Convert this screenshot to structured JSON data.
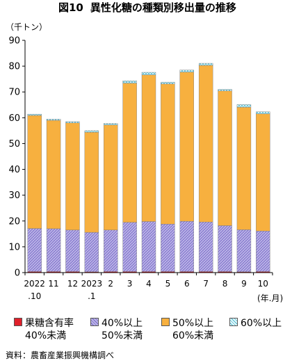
{
  "header": {
    "figure_label": "図10",
    "title": "異性化糖の種類別移出量の推移"
  },
  "chart_data": {
    "type": "bar",
    "stacked": true,
    "y_unit_label": "（千トン）",
    "x_unit_label": "(年.月)",
    "ylim": [
      0,
      90
    ],
    "yticks": [
      0,
      10,
      20,
      30,
      40,
      50,
      60,
      70,
      80,
      90
    ],
    "grid": false,
    "categories": [
      "2022.10",
      "11",
      "12",
      "2023.1",
      "2",
      "3",
      "4",
      "5",
      "6",
      "7",
      "8",
      "9",
      "10"
    ],
    "tick_labels": [
      {
        "line1": "2022",
        "line2": ".10"
      },
      {
        "line1": "11",
        "line2": ""
      },
      {
        "line1": "12",
        "line2": ""
      },
      {
        "line1": "2023",
        "line2": ".1"
      },
      {
        "line1": "2",
        "line2": ""
      },
      {
        "line1": "3",
        "line2": ""
      },
      {
        "line1": "4",
        "line2": ""
      },
      {
        "line1": "5",
        "line2": ""
      },
      {
        "line1": "6",
        "line2": ""
      },
      {
        "line1": "7",
        "line2": ""
      },
      {
        "line1": "8",
        "line2": ""
      },
      {
        "line1": "9",
        "line2": ""
      },
      {
        "line1": "10",
        "line2": ""
      }
    ],
    "series": [
      {
        "name": "果糖含有率 40%未満",
        "color": "#e0202a",
        "values": [
          0.4,
          0.4,
          0.4,
          0.3,
          0.4,
          0.4,
          0.4,
          0.4,
          0.4,
          0.4,
          0.4,
          0.3,
          0.4
        ]
      },
      {
        "name": "40%以上 50%未満",
        "color": "#b9b3e6",
        "values": [
          16.7,
          16.6,
          16.1,
          15.3,
          16.1,
          19.1,
          19.4,
          18.4,
          19.5,
          19.2,
          17.8,
          16.3,
          15.7
        ]
      },
      {
        "name": "50%以上 60%未満",
        "color": "#f7b03f",
        "values": [
          43.8,
          42.0,
          41.5,
          38.8,
          40.7,
          53.9,
          56.8,
          54.3,
          57.8,
          60.7,
          52.2,
          47.5,
          45.4
        ]
      },
      {
        "name": "60%以上",
        "color": "#cfeef6",
        "values": [
          0.5,
          0.5,
          0.5,
          0.6,
          0.6,
          0.9,
          1.0,
          0.7,
          0.8,
          0.8,
          0.6,
          1.0,
          0.8
        ]
      }
    ]
  },
  "legend": [
    {
      "line1": "果糖含有率",
      "line2": "40%未満"
    },
    {
      "line1": "40%以上",
      "line2": "50%未満"
    },
    {
      "line1": "50%以上",
      "line2": "60%未満"
    },
    {
      "line1": "60%以上",
      "line2": ""
    }
  ],
  "source": "資料：農畜産業振興機構調べ"
}
